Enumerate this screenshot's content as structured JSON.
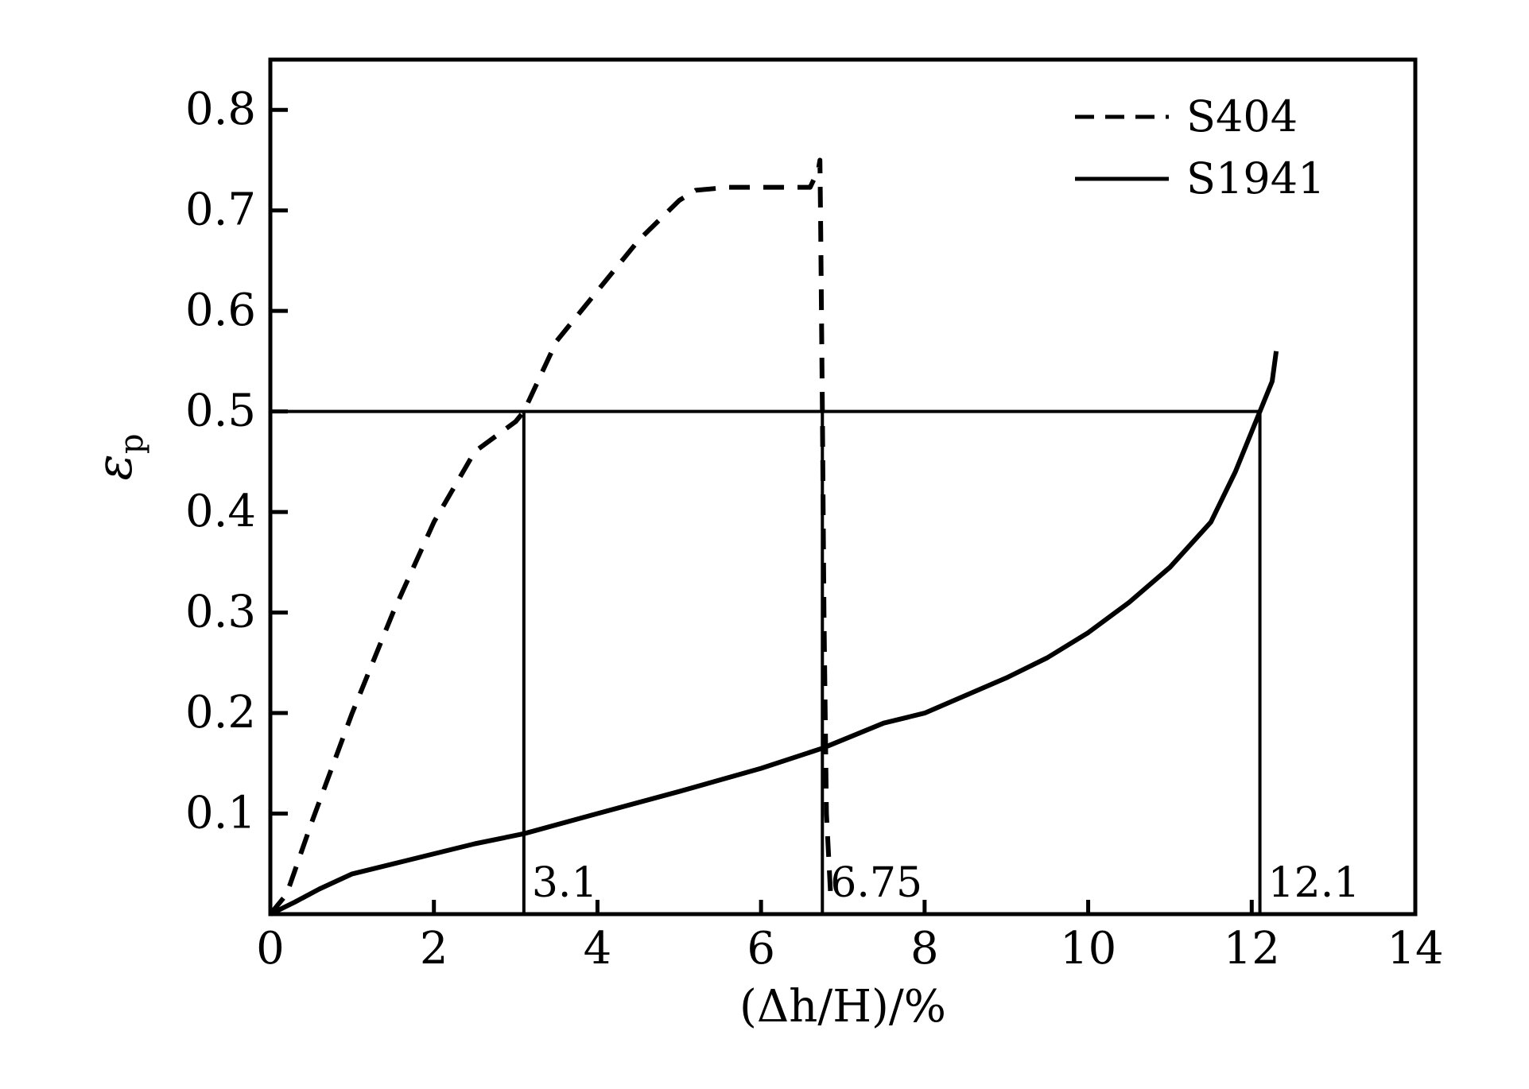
{
  "chart_data": {
    "type": "line",
    "title": "",
    "xlabel": "(Δh/H)/%",
    "ylabel": "εp",
    "xlim": [
      0,
      14
    ],
    "ylim": [
      0,
      0.85
    ],
    "x_ticks": [
      0,
      2,
      4,
      6,
      8,
      10,
      12,
      14
    ],
    "x_tick_labels": [
      "0",
      "2",
      "4",
      "6",
      "8",
      "10",
      "12",
      "14"
    ],
    "y_ticks": [
      0.1,
      0.2,
      0.3,
      0.4,
      0.5,
      0.6,
      0.7,
      0.8
    ],
    "y_tick_labels": [
      "0.1",
      "0.2",
      "0.3",
      "0.4",
      "0.5",
      "0.6",
      "0.7",
      "0.8"
    ],
    "grid": false,
    "legend_position": "top-right",
    "series": [
      {
        "name": "S404",
        "style": "dashed",
        "color": "#000000",
        "x": [
          0,
          0.2,
          0.5,
          1.0,
          1.5,
          2.0,
          2.5,
          3.0,
          3.1,
          3.5,
          4.0,
          4.5,
          5.0,
          5.2,
          5.6,
          6.0,
          6.6,
          6.7,
          6.72,
          6.73,
          6.75,
          6.77,
          6.8,
          6.85
        ],
        "y": [
          0,
          0.02,
          0.09,
          0.2,
          0.3,
          0.39,
          0.46,
          0.49,
          0.5,
          0.57,
          0.62,
          0.67,
          0.71,
          0.72,
          0.723,
          0.723,
          0.723,
          0.74,
          0.75,
          0.68,
          0.5,
          0.3,
          0.1,
          0.02
        ]
      },
      {
        "name": "S1941",
        "style": "solid",
        "color": "#000000",
        "x": [
          0,
          0.3,
          0.6,
          1.0,
          1.5,
          2.0,
          2.5,
          3.1,
          4.0,
          5.0,
          6.0,
          6.75,
          7.5,
          8.0,
          9.0,
          9.5,
          10.0,
          10.5,
          11.0,
          11.5,
          11.8,
          12.0,
          12.1,
          12.25,
          12.3
        ],
        "y": [
          0,
          0.012,
          0.025,
          0.04,
          0.05,
          0.06,
          0.07,
          0.08,
          0.1,
          0.122,
          0.145,
          0.165,
          0.19,
          0.2,
          0.235,
          0.255,
          0.28,
          0.31,
          0.345,
          0.39,
          0.44,
          0.48,
          0.5,
          0.53,
          0.56
        ]
      }
    ],
    "reference_lines": {
      "horizontal": {
        "y": 0.5,
        "x_from": 0,
        "x_to": 12.1
      },
      "vertical": [
        {
          "x": 3.1,
          "label": "3.1"
        },
        {
          "x": 6.75,
          "label": "6.75"
        },
        {
          "x": 12.1,
          "label": "12.1"
        }
      ]
    }
  }
}
